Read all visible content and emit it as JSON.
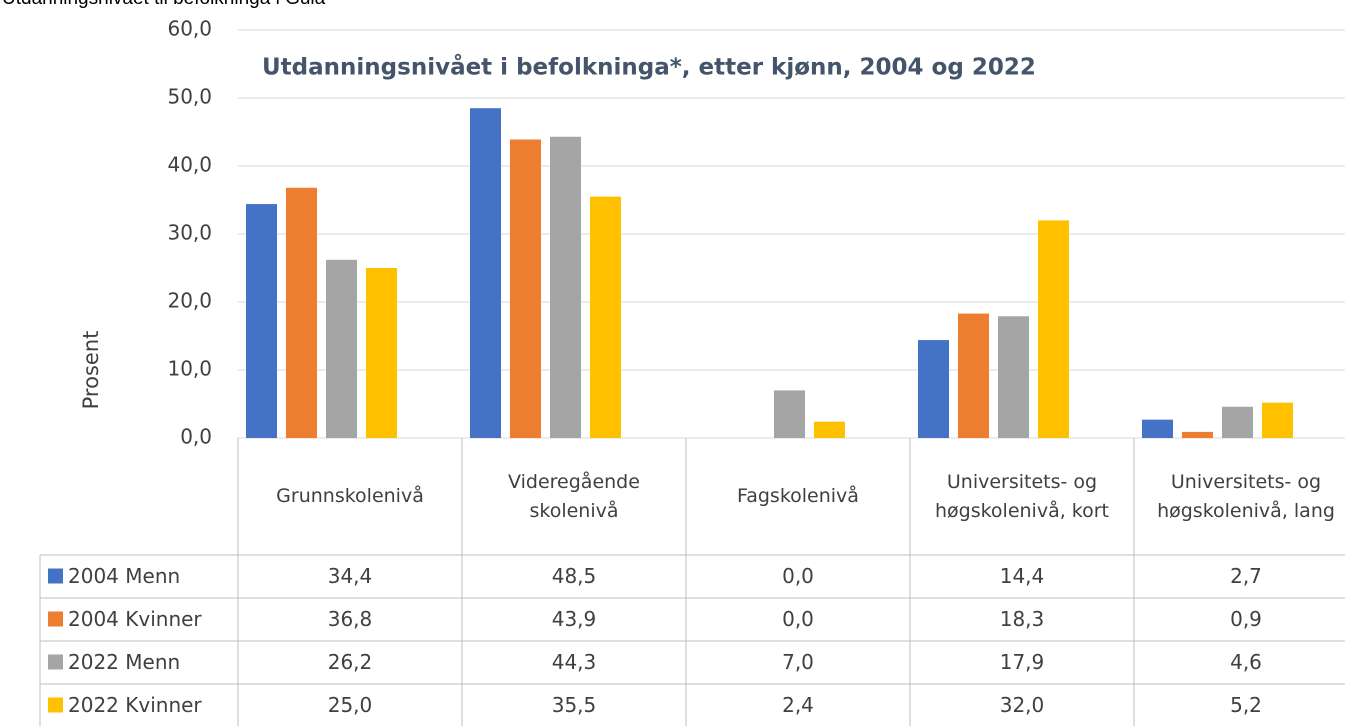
{
  "heading": "Utdanningsnivået til befolkninga i Gula",
  "chart_data": {
    "type": "bar",
    "title": "Utdanningsnivået i befolkninga*, etter kjønn, 2004 og 2022",
    "y_label": "Prosent",
    "categories": [
      "Grunnskolenivå",
      "Videregående skolenivå",
      "Fagskolenivå",
      "Universitets- og høgskolenivå, kort",
      "Universitets- og høgskolenivå, lang"
    ],
    "series": [
      {
        "name": "2004 Menn",
        "color": "#4472c4",
        "values": [
          34.4,
          48.5,
          0.0,
          14.4,
          2.7
        ],
        "value_labels": [
          "34,4",
          "48,5",
          "0,0",
          "14,4",
          "2,7"
        ]
      },
      {
        "name": "2004 Kvinner",
        "color": "#ed7d31",
        "values": [
          36.8,
          43.9,
          0.0,
          18.3,
          0.9
        ],
        "value_labels": [
          "36,8",
          "43,9",
          "0,0",
          "18,3",
          "0,9"
        ]
      },
      {
        "name": "2022 Menn",
        "color": "#a5a5a5",
        "values": [
          26.2,
          44.3,
          7.0,
          17.9,
          4.6
        ],
        "value_labels": [
          "26,2",
          "44,3",
          "7,0",
          "17,9",
          "4,6"
        ]
      },
      {
        "name": "2022 Kvinner",
        "color": "#ffc000",
        "values": [
          25.0,
          35.5,
          2.4,
          32.0,
          5.2
        ],
        "value_labels": [
          "25,0",
          "35,5",
          "2,4",
          "32,0",
          "5,2"
        ]
      }
    ],
    "ylim": [
      0,
      60
    ],
    "yticks": [
      {
        "value": 0,
        "label": "0,0"
      },
      {
        "value": 10,
        "label": "10,0"
      },
      {
        "value": 20,
        "label": "20,0"
      },
      {
        "value": 30,
        "label": "30,0"
      },
      {
        "value": 40,
        "label": "40,0"
      },
      {
        "value": 50,
        "label": "50,0"
      },
      {
        "value": 60,
        "label": "60,0"
      }
    ],
    "grid": true
  }
}
